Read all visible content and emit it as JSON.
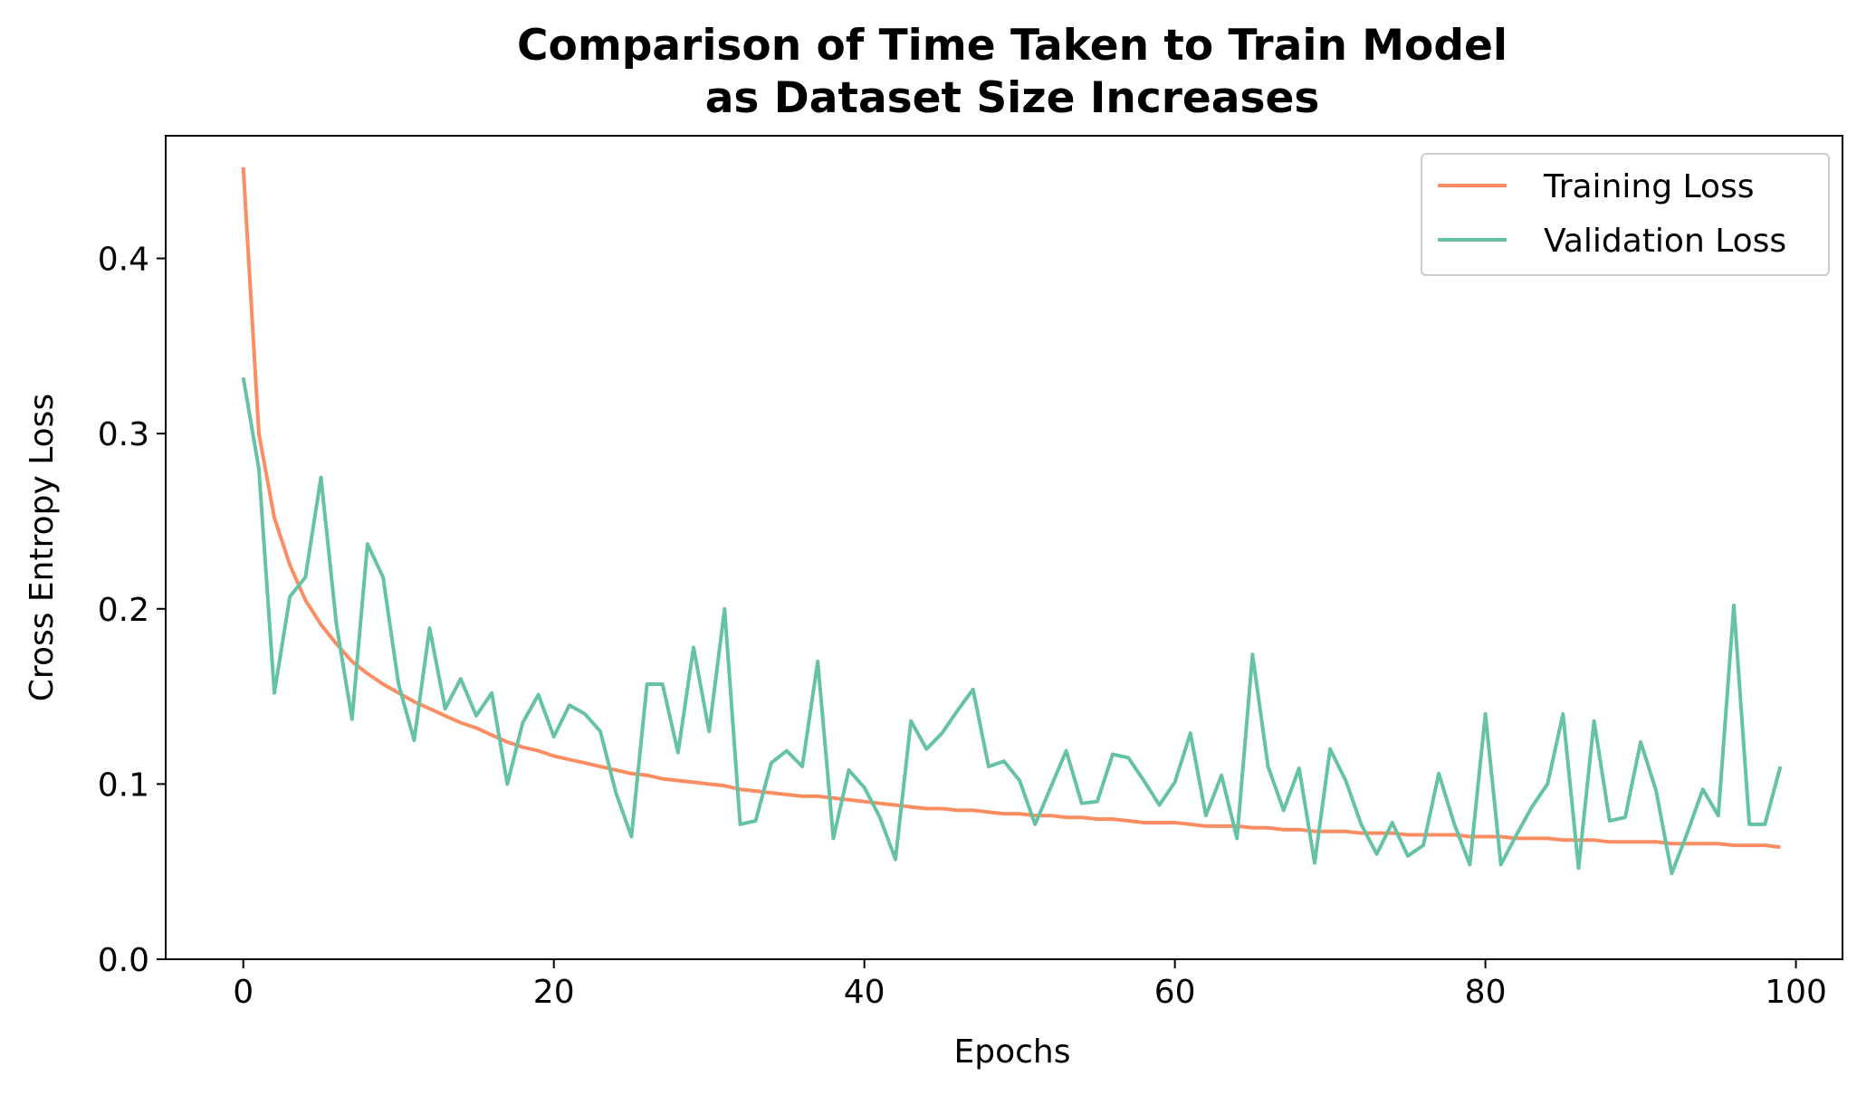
{
  "chart_data": {
    "type": "line",
    "title_line1": "Comparison of Time Taken to Train Model",
    "title_line2": "as Dataset Size Increases",
    "xlabel": "Epochs",
    "ylabel": "Cross Entropy Loss",
    "xlim": [
      -5,
      103
    ],
    "ylim": [
      0,
      0.47
    ],
    "xticks": [
      0,
      20,
      40,
      60,
      80,
      100
    ],
    "xtick_labels": [
      "0",
      "20",
      "40",
      "60",
      "80",
      "100"
    ],
    "yticks": [
      0.0,
      0.1,
      0.2,
      0.3,
      0.4
    ],
    "ytick_labels": [
      "0.0",
      "0.1",
      "0.2",
      "0.3",
      "0.4"
    ],
    "grid": false,
    "legend_position": "top-right",
    "series": [
      {
        "name": "Training Loss",
        "color": "#fc8d62",
        "x": [
          0,
          1,
          2,
          3,
          4,
          5,
          6,
          7,
          8,
          9,
          10,
          11,
          12,
          13,
          14,
          15,
          16,
          17,
          18,
          19,
          20,
          21,
          22,
          23,
          24,
          25,
          26,
          27,
          28,
          29,
          30,
          31,
          32,
          33,
          34,
          35,
          36,
          37,
          38,
          39,
          40,
          41,
          42,
          43,
          44,
          45,
          46,
          47,
          48,
          49,
          50,
          51,
          52,
          53,
          54,
          55,
          56,
          57,
          58,
          59,
          60,
          61,
          62,
          63,
          64,
          65,
          66,
          67,
          68,
          69,
          70,
          71,
          72,
          73,
          74,
          75,
          76,
          77,
          78,
          79,
          80,
          81,
          82,
          83,
          84,
          85,
          86,
          87,
          88,
          89,
          90,
          91,
          92,
          93,
          94,
          95,
          96,
          97,
          98,
          99
        ],
        "values": [
          0.452,
          0.3,
          0.252,
          0.225,
          0.205,
          0.191,
          0.18,
          0.17,
          0.163,
          0.157,
          0.152,
          0.147,
          0.143,
          0.139,
          0.135,
          0.132,
          0.128,
          0.124,
          0.121,
          0.119,
          0.116,
          0.114,
          0.112,
          0.11,
          0.108,
          0.106,
          0.105,
          0.103,
          0.102,
          0.101,
          0.1,
          0.099,
          0.097,
          0.096,
          0.095,
          0.094,
          0.093,
          0.093,
          0.092,
          0.091,
          0.09,
          0.089,
          0.088,
          0.087,
          0.086,
          0.086,
          0.085,
          0.085,
          0.084,
          0.083,
          0.083,
          0.082,
          0.082,
          0.081,
          0.081,
          0.08,
          0.08,
          0.079,
          0.078,
          0.078,
          0.078,
          0.077,
          0.076,
          0.076,
          0.076,
          0.075,
          0.075,
          0.074,
          0.074,
          0.073,
          0.073,
          0.073,
          0.072,
          0.072,
          0.072,
          0.071,
          0.071,
          0.071,
          0.071,
          0.07,
          0.07,
          0.07,
          0.069,
          0.069,
          0.069,
          0.068,
          0.068,
          0.068,
          0.067,
          0.067,
          0.067,
          0.067,
          0.066,
          0.066,
          0.066,
          0.066,
          0.065,
          0.065,
          0.065,
          0.064
        ]
      },
      {
        "name": "Validation Loss",
        "color": "#66c2a5",
        "x": [
          0,
          1,
          2,
          3,
          4,
          5,
          6,
          7,
          8,
          9,
          10,
          11,
          12,
          13,
          14,
          15,
          16,
          17,
          18,
          19,
          20,
          21,
          22,
          23,
          24,
          25,
          26,
          27,
          28,
          29,
          30,
          31,
          32,
          33,
          34,
          35,
          36,
          37,
          38,
          39,
          40,
          41,
          42,
          43,
          44,
          45,
          46,
          47,
          48,
          49,
          50,
          51,
          52,
          53,
          54,
          55,
          56,
          57,
          58,
          59,
          60,
          61,
          62,
          63,
          64,
          65,
          66,
          67,
          68,
          69,
          70,
          71,
          72,
          73,
          74,
          75,
          76,
          77,
          78,
          79,
          80,
          81,
          82,
          83,
          84,
          85,
          86,
          87,
          88,
          89,
          90,
          91,
          92,
          93,
          94,
          95,
          96,
          97,
          98,
          99
        ],
        "values": [
          0.332,
          0.28,
          0.152,
          0.207,
          0.218,
          0.275,
          0.191,
          0.137,
          0.237,
          0.218,
          0.157,
          0.125,
          0.189,
          0.143,
          0.16,
          0.139,
          0.152,
          0.1,
          0.135,
          0.151,
          0.127,
          0.145,
          0.14,
          0.13,
          0.095,
          0.07,
          0.157,
          0.157,
          0.118,
          0.178,
          0.13,
          0.2,
          0.077,
          0.079,
          0.112,
          0.119,
          0.11,
          0.17,
          0.069,
          0.108,
          0.098,
          0.081,
          0.057,
          0.136,
          0.12,
          0.129,
          0.142,
          0.154,
          0.11,
          0.113,
          0.102,
          0.077,
          0.098,
          0.119,
          0.089,
          0.09,
          0.117,
          0.115,
          0.102,
          0.088,
          0.101,
          0.129,
          0.082,
          0.105,
          0.069,
          0.174,
          0.11,
          0.085,
          0.109,
          0.055,
          0.12,
          0.102,
          0.077,
          0.06,
          0.078,
          0.059,
          0.065,
          0.106,
          0.077,
          0.054,
          0.14,
          0.054,
          0.071,
          0.087,
          0.1,
          0.14,
          0.052,
          0.136,
          0.079,
          0.081,
          0.124,
          0.096,
          0.049,
          0.072,
          0.097,
          0.082,
          0.202,
          0.077,
          0.077,
          0.11
        ]
      }
    ]
  }
}
